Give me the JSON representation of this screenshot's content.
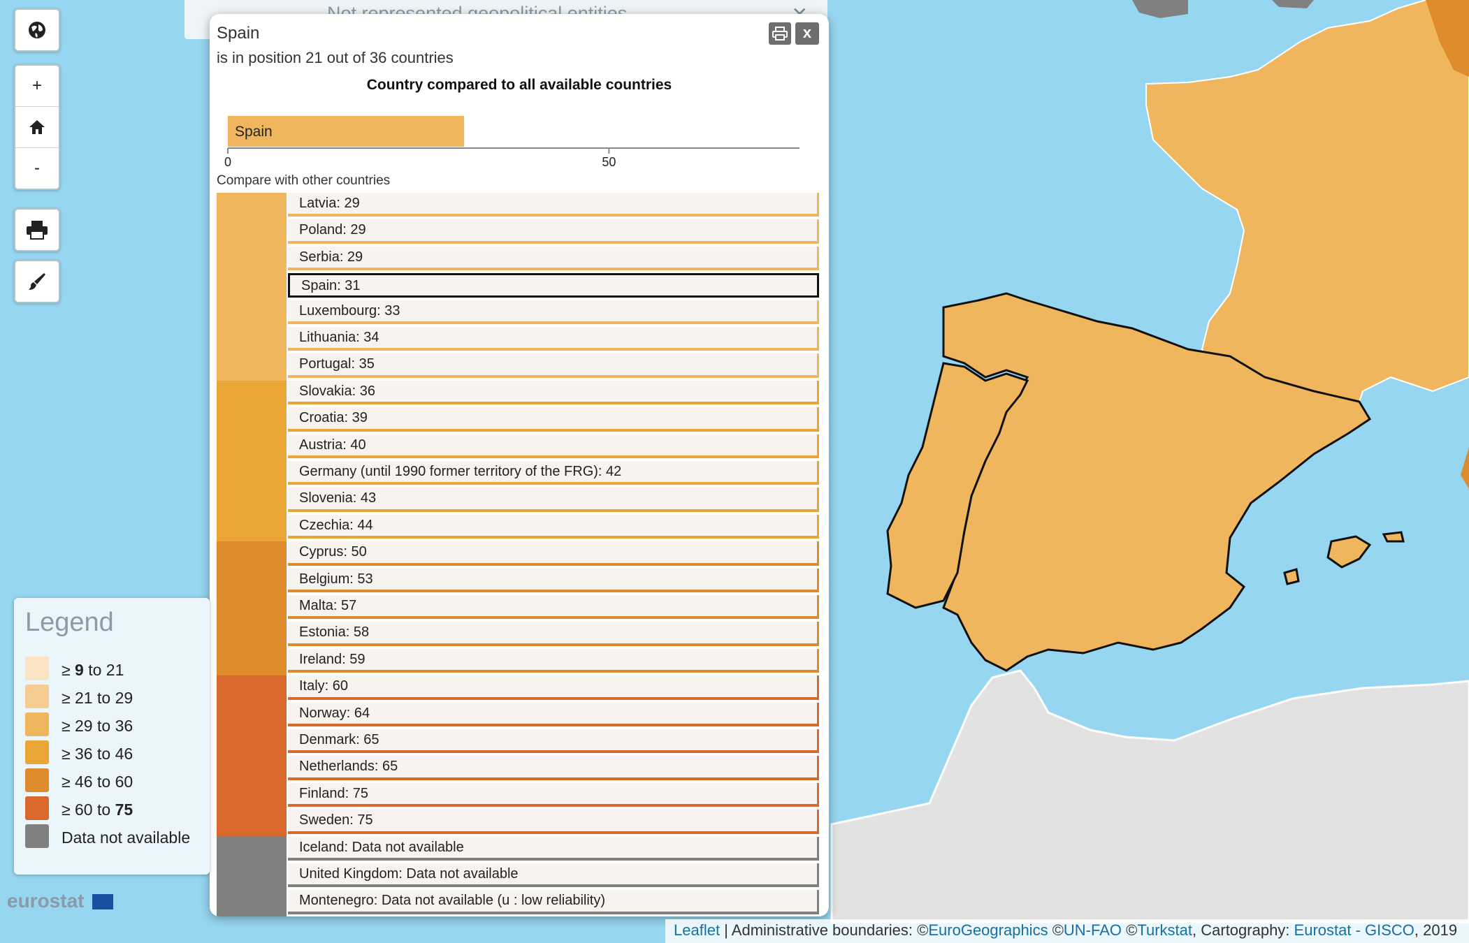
{
  "notRepresented": {
    "text": "Not represented geopolitical entities",
    "close": "✕"
  },
  "controls": [
    {
      "name": "globe-button",
      "icon": "globe-icon"
    },
    {
      "name": "zoom-in-button",
      "label": "+"
    },
    {
      "name": "home-button",
      "icon": "home-icon"
    },
    {
      "name": "zoom-out-button",
      "label": "-"
    },
    {
      "name": "print-button",
      "icon": "printer-icon"
    },
    {
      "name": "style-button",
      "icon": "brush-icon"
    }
  ],
  "popup": {
    "title": "Spain",
    "subtitle": "is in position 21 out of 36 countries",
    "print_icon": "printer-icon",
    "close_label": "x",
    "chart_title": "Country compared to all available countries",
    "compare_title": "Compare with other countries"
  },
  "chart_data": {
    "type": "bar",
    "orientation": "horizontal",
    "title": "Country compared to all available countries",
    "categories": [
      "Spain"
    ],
    "values": [
      31
    ],
    "xlim": [
      0,
      75
    ],
    "xticks": [
      0,
      50
    ],
    "bar_color": "#f0b65e"
  },
  "ranking": [
    {
      "label": "Latvia: 29",
      "cls": 2
    },
    {
      "label": "Poland: 29",
      "cls": 2
    },
    {
      "label": "Serbia: 29",
      "cls": 2
    },
    {
      "label": "Spain: 31",
      "cls": 2,
      "selected": true
    },
    {
      "label": "Luxembourg: 33",
      "cls": 2
    },
    {
      "label": "Lithuania: 34",
      "cls": 2
    },
    {
      "label": "Portugal: 35",
      "cls": 2
    },
    {
      "label": "Slovakia: 36",
      "cls": 3
    },
    {
      "label": "Croatia: 39",
      "cls": 3
    },
    {
      "label": "Austria: 40",
      "cls": 3
    },
    {
      "label": "Germany (until 1990 former territory of the FRG): 42",
      "cls": 3
    },
    {
      "label": "Slovenia: 43",
      "cls": 3
    },
    {
      "label": "Czechia: 44",
      "cls": 3
    },
    {
      "label": "Cyprus: 50",
      "cls": 4
    },
    {
      "label": "Belgium: 53",
      "cls": 4
    },
    {
      "label": "Malta: 57",
      "cls": 4
    },
    {
      "label": "Estonia: 58",
      "cls": 4
    },
    {
      "label": "Ireland: 59",
      "cls": 4
    },
    {
      "label": "Italy: 60",
      "cls": 5
    },
    {
      "label": "Norway: 64",
      "cls": 5
    },
    {
      "label": "Denmark: 65",
      "cls": 5
    },
    {
      "label": "Netherlands: 65",
      "cls": 5
    },
    {
      "label": "Finland: 75",
      "cls": 5
    },
    {
      "label": "Sweden: 75",
      "cls": 5
    },
    {
      "label": "Iceland: Data not available",
      "cls": 6
    },
    {
      "label": "United Kingdom: Data not available",
      "cls": 6
    },
    {
      "label": "Montenegro: Data not available (u : low reliability)",
      "cls": 6
    }
  ],
  "classColors": [
    "#fbe4c3",
    "#f6cd91",
    "#f0b65e",
    "#e9a535",
    "#de8b2b",
    "#d9682c",
    "#808080"
  ],
  "legend": {
    "title": "Legend",
    "items": [
      {
        "pre": "≥ ",
        "a": "9",
        "a_bold": true,
        "mid": " to ",
        "b": "21",
        "b_bold": false,
        "color": "#fbe4c3"
      },
      {
        "pre": "≥ ",
        "a": "21",
        "a_bold": false,
        "mid": " to ",
        "b": "29",
        "b_bold": false,
        "color": "#f6cd91"
      },
      {
        "pre": "≥ ",
        "a": "29",
        "a_bold": false,
        "mid": " to ",
        "b": "36",
        "b_bold": false,
        "color": "#f0b65e"
      },
      {
        "pre": "≥ ",
        "a": "36",
        "a_bold": false,
        "mid": " to ",
        "b": "46",
        "b_bold": false,
        "color": "#e9a535"
      },
      {
        "pre": "≥ ",
        "a": "46",
        "a_bold": false,
        "mid": " to ",
        "b": "60",
        "b_bold": false,
        "color": "#de8b2b"
      },
      {
        "pre": "≥ ",
        "a": "60",
        "a_bold": false,
        "mid": " to ",
        "b": "75",
        "b_bold": true,
        "color": "#d9682c"
      },
      {
        "pre": "",
        "a": "Data not available",
        "a_bold": false,
        "mid": "",
        "b": "",
        "b_bold": false,
        "color": "#808080"
      }
    ]
  },
  "logo": {
    "text": "eurostat"
  },
  "attribution": {
    "leaflet": "Leaflet",
    "sep": " | Administrative boundaries: ©",
    "eurogeo": "EuroGeographics",
    "c2": " ©",
    "unfao": "UN-FAO",
    "c3": " ©",
    "turkstat": "Turkstat",
    "c4": ", Cartography: ",
    "gisco": "Eurostat - GISCO",
    "year": ", 2019"
  },
  "mapColors": {
    "sea": "#97d6f0",
    "spain": "#f0b65e",
    "portugal": "#f0b65e",
    "france": "#f0b65e",
    "africa": "#e2e2e2"
  }
}
